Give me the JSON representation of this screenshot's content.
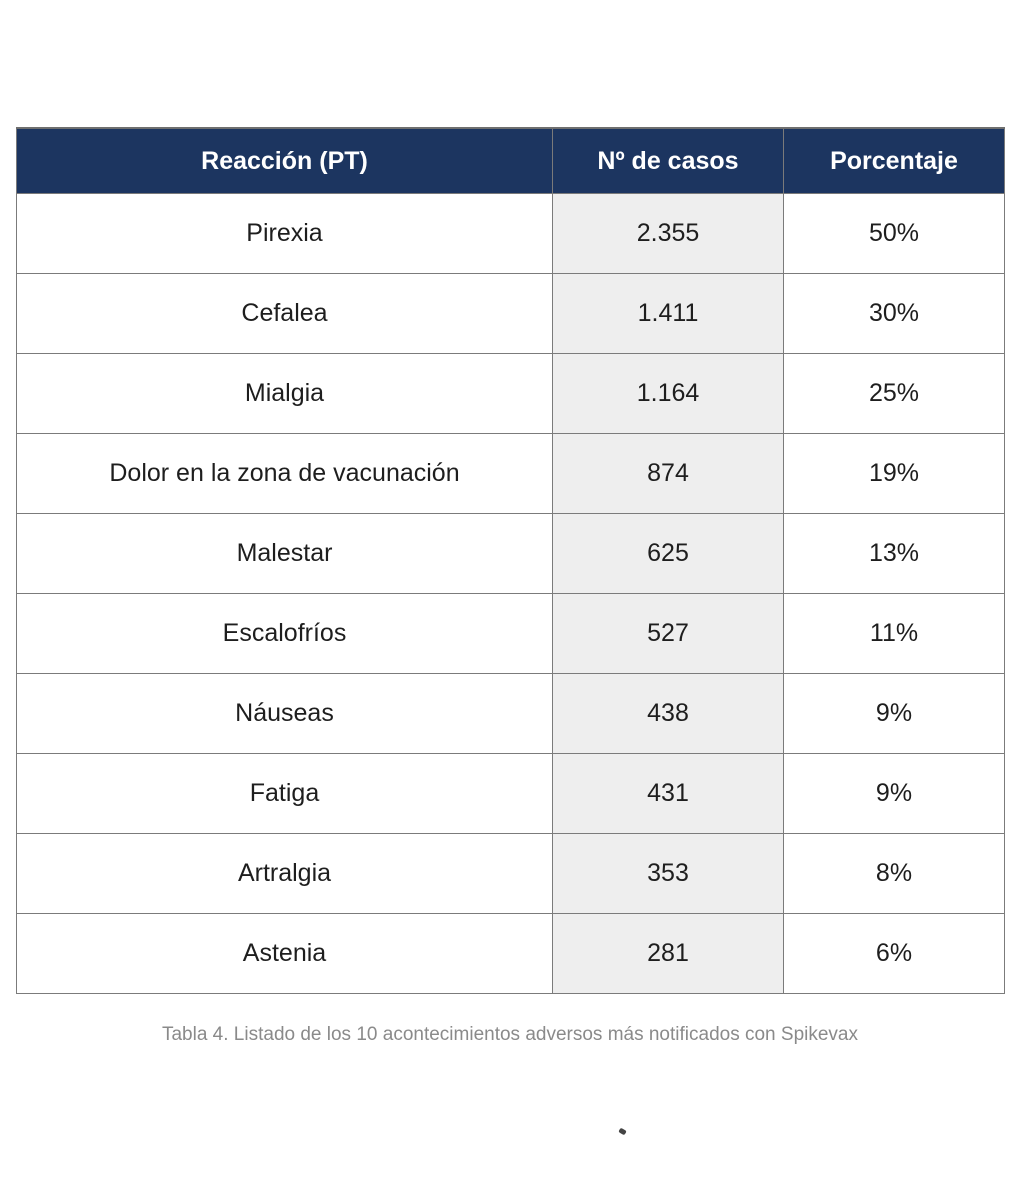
{
  "table": {
    "headers": [
      "Reacción (PT)",
      "Nº de casos",
      "Porcentaje"
    ],
    "rows": [
      {
        "reaction": "Pirexia",
        "cases": "2.355",
        "percent": "50%"
      },
      {
        "reaction": "Cefalea",
        "cases": "1.411",
        "percent": "30%"
      },
      {
        "reaction": "Mialgia",
        "cases": "1.164",
        "percent": "25%"
      },
      {
        "reaction": "Dolor en la zona de vacunación",
        "cases": "874",
        "percent": "19%"
      },
      {
        "reaction": "Malestar",
        "cases": "625",
        "percent": "13%"
      },
      {
        "reaction": "Escalofríos",
        "cases": "527",
        "percent": "11%"
      },
      {
        "reaction": "Náuseas",
        "cases": "438",
        "percent": "9%"
      },
      {
        "reaction": "Fatiga",
        "cases": "431",
        "percent": "9%"
      },
      {
        "reaction": "Artralgia",
        "cases": "353",
        "percent": "8%"
      },
      {
        "reaction": "Astenia",
        "cases": "281",
        "percent": "6%"
      }
    ]
  },
  "caption": "Tabla 4. Listado de los 10 acontecimientos adversos más notificados con Spikevax",
  "colors": {
    "header_bg": "#1c3560",
    "header_text": "#ffffff",
    "cases_column_bg": "#eeeeee",
    "caption_text": "#8a8a8a"
  }
}
